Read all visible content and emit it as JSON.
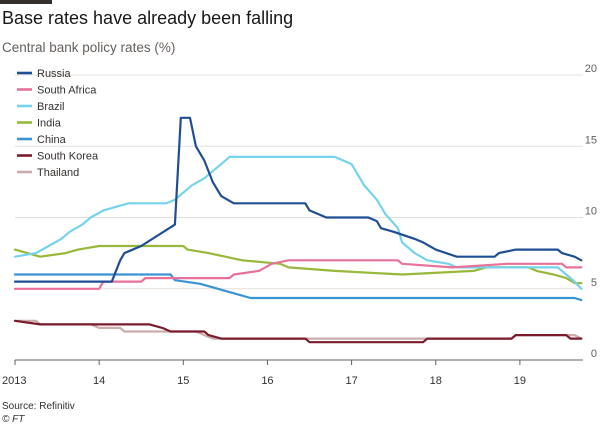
{
  "header": {
    "title": "Base rates have already been falling",
    "subtitle": "Central bank policy rates (%)"
  },
  "footer": {
    "source": "Source: Refinitiv",
    "credit": "© FT"
  },
  "chart_data": {
    "type": "line",
    "title": "Base rates have already been falling",
    "subtitle": "Central bank policy rates (%)",
    "xlabel": "",
    "ylabel": "",
    "xlim": [
      2013.0,
      2019.75
    ],
    "ylim": [
      0,
      20
    ],
    "x_ticks": [
      2013,
      2014,
      2015,
      2016,
      2017,
      2018,
      2019
    ],
    "x_tick_labels": [
      "2013",
      "14",
      "15",
      "16",
      "17",
      "18",
      "19"
    ],
    "y_ticks": [
      0,
      5,
      10,
      15,
      20
    ],
    "y_tick_labels": [
      "0",
      "5",
      "10",
      "15",
      "20"
    ],
    "grid": true,
    "legend_position": "top-left",
    "colors": {
      "Russia": "#1f4e93",
      "South Africa": "#e8719a",
      "Brazil": "#76d3ec",
      "India": "#97b83a",
      "China": "#3a94d4",
      "South Korea": "#7a1c2c",
      "Thailand": "#c9adaa"
    },
    "series": [
      {
        "name": "Russia",
        "points": [
          [
            2013.0,
            5.5
          ],
          [
            2014.15,
            5.5
          ],
          [
            2014.25,
            7.0
          ],
          [
            2014.3,
            7.5
          ],
          [
            2014.5,
            8.0
          ],
          [
            2014.9,
            9.5
          ],
          [
            2014.97,
            17.0
          ],
          [
            2015.08,
            17.0
          ],
          [
            2015.15,
            15.0
          ],
          [
            2015.25,
            14.0
          ],
          [
            2015.35,
            12.5
          ],
          [
            2015.45,
            11.5
          ],
          [
            2015.6,
            11.0
          ],
          [
            2016.45,
            11.0
          ],
          [
            2016.5,
            10.5
          ],
          [
            2016.7,
            10.0
          ],
          [
            2017.2,
            10.0
          ],
          [
            2017.3,
            9.75
          ],
          [
            2017.35,
            9.25
          ],
          [
            2017.5,
            9.0
          ],
          [
            2017.75,
            8.5
          ],
          [
            2017.85,
            8.25
          ],
          [
            2018.0,
            7.75
          ],
          [
            2018.25,
            7.25
          ],
          [
            2018.7,
            7.25
          ],
          [
            2018.75,
            7.5
          ],
          [
            2018.95,
            7.75
          ],
          [
            2019.45,
            7.75
          ],
          [
            2019.5,
            7.5
          ],
          [
            2019.65,
            7.25
          ],
          [
            2019.73,
            7.0
          ]
        ]
      },
      {
        "name": "South Africa",
        "points": [
          [
            2013.0,
            5.0
          ],
          [
            2014.0,
            5.0
          ],
          [
            2014.05,
            5.5
          ],
          [
            2014.5,
            5.5
          ],
          [
            2014.55,
            5.75
          ],
          [
            2015.55,
            5.75
          ],
          [
            2015.6,
            6.0
          ],
          [
            2015.9,
            6.25
          ],
          [
            2016.05,
            6.75
          ],
          [
            2016.25,
            7.0
          ],
          [
            2017.55,
            7.0
          ],
          [
            2017.6,
            6.75
          ],
          [
            2018.2,
            6.5
          ],
          [
            2018.85,
            6.75
          ],
          [
            2019.5,
            6.75
          ],
          [
            2019.55,
            6.5
          ],
          [
            2019.73,
            6.5
          ]
        ]
      },
      {
        "name": "Brazil",
        "points": [
          [
            2013.0,
            7.25
          ],
          [
            2013.25,
            7.5
          ],
          [
            2013.4,
            8.0
          ],
          [
            2013.55,
            8.5
          ],
          [
            2013.65,
            9.0
          ],
          [
            2013.8,
            9.5
          ],
          [
            2013.9,
            10.0
          ],
          [
            2014.05,
            10.5
          ],
          [
            2014.2,
            10.75
          ],
          [
            2014.35,
            11.0
          ],
          [
            2014.8,
            11.0
          ],
          [
            2014.9,
            11.25
          ],
          [
            2015.0,
            11.75
          ],
          [
            2015.1,
            12.25
          ],
          [
            2015.25,
            12.75
          ],
          [
            2015.35,
            13.25
          ],
          [
            2015.45,
            13.75
          ],
          [
            2015.55,
            14.25
          ],
          [
            2016.8,
            14.25
          ],
          [
            2016.9,
            14.0
          ],
          [
            2017.0,
            13.75
          ],
          [
            2017.15,
            12.25
          ],
          [
            2017.3,
            11.25
          ],
          [
            2017.4,
            10.25
          ],
          [
            2017.55,
            9.25
          ],
          [
            2017.6,
            8.25
          ],
          [
            2017.75,
            7.5
          ],
          [
            2017.9,
            7.0
          ],
          [
            2018.15,
            6.75
          ],
          [
            2018.25,
            6.5
          ],
          [
            2019.45,
            6.5
          ],
          [
            2019.55,
            6.0
          ],
          [
            2019.65,
            5.5
          ],
          [
            2019.73,
            5.0
          ]
        ]
      },
      {
        "name": "India",
        "points": [
          [
            2013.0,
            7.75
          ],
          [
            2013.3,
            7.25
          ],
          [
            2013.6,
            7.5
          ],
          [
            2013.75,
            7.75
          ],
          [
            2014.0,
            8.0
          ],
          [
            2015.0,
            8.0
          ],
          [
            2015.05,
            7.75
          ],
          [
            2015.3,
            7.5
          ],
          [
            2015.7,
            7.0
          ],
          [
            2016.15,
            6.75
          ],
          [
            2016.25,
            6.5
          ],
          [
            2016.8,
            6.25
          ],
          [
            2017.6,
            6.0
          ],
          [
            2018.45,
            6.25
          ],
          [
            2018.6,
            6.5
          ],
          [
            2019.1,
            6.5
          ],
          [
            2019.2,
            6.25
          ],
          [
            2019.4,
            6.0
          ],
          [
            2019.55,
            5.75
          ],
          [
            2019.65,
            5.4
          ],
          [
            2019.73,
            5.4
          ]
        ]
      },
      {
        "name": "China",
        "points": [
          [
            2013.0,
            6.0
          ],
          [
            2014.85,
            6.0
          ],
          [
            2014.9,
            5.6
          ],
          [
            2015.2,
            5.35
          ],
          [
            2015.35,
            5.1
          ],
          [
            2015.5,
            4.85
          ],
          [
            2015.65,
            4.6
          ],
          [
            2015.8,
            4.35
          ],
          [
            2019.65,
            4.35
          ],
          [
            2019.73,
            4.2
          ]
        ]
      },
      {
        "name": "South Korea",
        "points": [
          [
            2013.0,
            2.75
          ],
          [
            2013.3,
            2.5
          ],
          [
            2013.8,
            2.5
          ],
          [
            2014.6,
            2.5
          ],
          [
            2014.75,
            2.25
          ],
          [
            2014.85,
            2.0
          ],
          [
            2015.25,
            2.0
          ],
          [
            2015.3,
            1.75
          ],
          [
            2015.45,
            1.5
          ],
          [
            2016.45,
            1.5
          ],
          [
            2016.5,
            1.25
          ],
          [
            2017.85,
            1.25
          ],
          [
            2017.9,
            1.5
          ],
          [
            2018.9,
            1.5
          ],
          [
            2018.95,
            1.75
          ],
          [
            2019.55,
            1.75
          ],
          [
            2019.6,
            1.5
          ],
          [
            2019.73,
            1.5
          ]
        ]
      },
      {
        "name": "Thailand",
        "points": [
          [
            2013.0,
            2.75
          ],
          [
            2013.25,
            2.75
          ],
          [
            2013.3,
            2.5
          ],
          [
            2013.9,
            2.5
          ],
          [
            2014.0,
            2.25
          ],
          [
            2014.25,
            2.25
          ],
          [
            2014.3,
            2.0
          ],
          [
            2015.15,
            2.0
          ],
          [
            2015.25,
            1.75
          ],
          [
            2015.35,
            1.5
          ],
          [
            2018.9,
            1.5
          ],
          [
            2018.95,
            1.75
          ],
          [
            2019.65,
            1.75
          ],
          [
            2019.73,
            1.5
          ]
        ]
      }
    ]
  }
}
